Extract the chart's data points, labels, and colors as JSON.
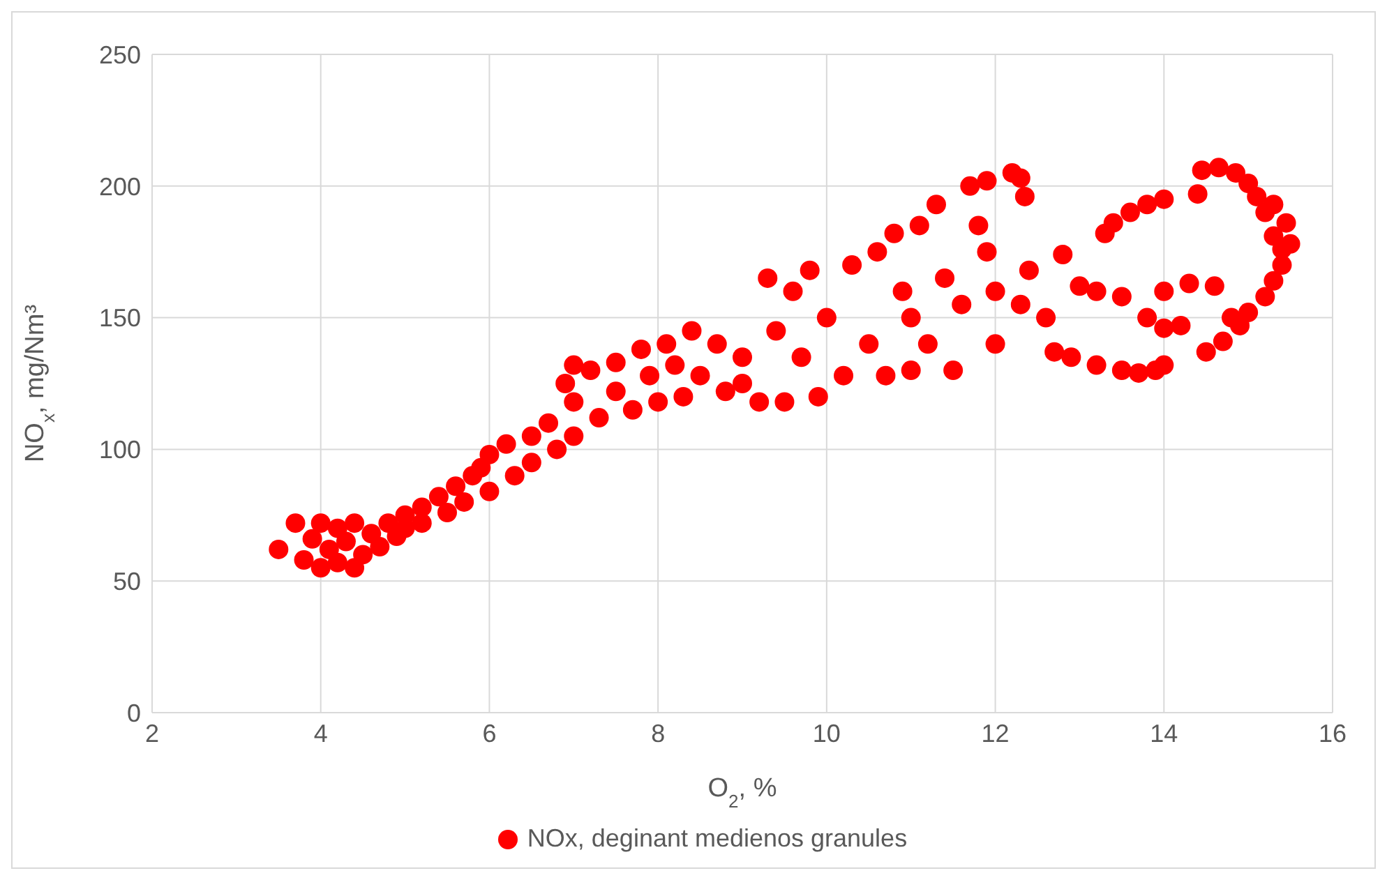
{
  "chart_data": {
    "type": "scatter",
    "xlabel": "O$_{2}$, %",
    "ylabel": "NO$_{x}$, mg/Nm³",
    "xlim": [
      2,
      16
    ],
    "xticks": [
      2,
      4,
      6,
      8,
      10,
      12,
      14,
      16
    ],
    "ylim": [
      0,
      250
    ],
    "yticks": [
      0,
      50,
      100,
      150,
      200,
      250
    ],
    "grid": true,
    "legend": "bottom",
    "marker": "circle",
    "series": [
      {
        "name": "NOx, deginant medienos granules",
        "color": "#ff0000",
        "x": [
          3.5,
          3.7,
          3.8,
          3.9,
          4.0,
          4.0,
          4.1,
          4.2,
          4.2,
          4.3,
          4.4,
          4.4,
          4.5,
          4.6,
          4.7,
          4.8,
          4.9,
          5.0,
          5.0,
          5.2,
          5.2,
          5.4,
          5.5,
          5.6,
          5.7,
          5.8,
          5.9,
          6.0,
          6.0,
          6.2,
          6.3,
          6.5,
          6.5,
          6.7,
          6.8,
          6.9,
          7.0,
          7.0,
          7.0,
          7.2,
          7.3,
          7.5,
          7.5,
          7.7,
          7.8,
          7.9,
          8.0,
          8.1,
          8.2,
          8.3,
          8.4,
          8.5,
          8.7,
          8.8,
          9.0,
          9.0,
          9.2,
          9.3,
          9.4,
          9.5,
          9.6,
          9.7,
          9.8,
          9.9,
          10.0,
          10.2,
          10.3,
          10.5,
          10.6,
          10.7,
          10.8,
          10.9,
          11.0,
          11.0,
          11.1,
          11.2,
          11.3,
          11.4,
          11.5,
          11.6,
          11.7,
          11.8,
          11.9,
          11.9,
          12.0,
          12.0,
          12.2,
          12.3,
          12.35,
          12.3,
          12.4,
          12.6,
          12.7,
          12.8,
          12.9,
          13.0,
          13.2,
          13.3,
          13.4,
          13.5,
          13.6,
          13.7,
          13.8,
          13.9,
          14.0,
          14.0,
          13.2,
          13.5,
          13.8,
          14.0,
          14.2,
          14.0,
          14.3,
          14.6,
          14.8,
          14.5,
          14.7,
          14.9,
          15.0,
          15.2,
          15.3,
          15.4,
          15.5,
          15.45,
          15.3,
          15.1,
          15.0,
          14.85,
          14.65,
          14.45,
          14.4,
          15.2,
          15.3,
          15.4
        ],
        "values": [
          62,
          72,
          58,
          66,
          55,
          72,
          62,
          57,
          70,
          65,
          55,
          72,
          60,
          68,
          63,
          72,
          67,
          75,
          70,
          78,
          72,
          82,
          76,
          86,
          80,
          90,
          93,
          98,
          84,
          102,
          90,
          105,
          95,
          110,
          100,
          125,
          132,
          118,
          105,
          130,
          112,
          133,
          122,
          115,
          138,
          128,
          118,
          140,
          132,
          120,
          145,
          128,
          140,
          122,
          135,
          125,
          118,
          165,
          145,
          118,
          160,
          135,
          168,
          120,
          150,
          128,
          170,
          140,
          175,
          128,
          182,
          160,
          130,
          150,
          185,
          140,
          193,
          165,
          130,
          155,
          200,
          185,
          175,
          202,
          140,
          160,
          205,
          203,
          196,
          155,
          168,
          150,
          137,
          174,
          135,
          162,
          132,
          182,
          186,
          130,
          190,
          129,
          193,
          130,
          195,
          132,
          160,
          158,
          150,
          146,
          147,
          160,
          163,
          162,
          150,
          137,
          141,
          147,
          152,
          158,
          164,
          170,
          178,
          186,
          193,
          196,
          201,
          205,
          207,
          206,
          197,
          190,
          181,
          176
        ]
      }
    ]
  }
}
